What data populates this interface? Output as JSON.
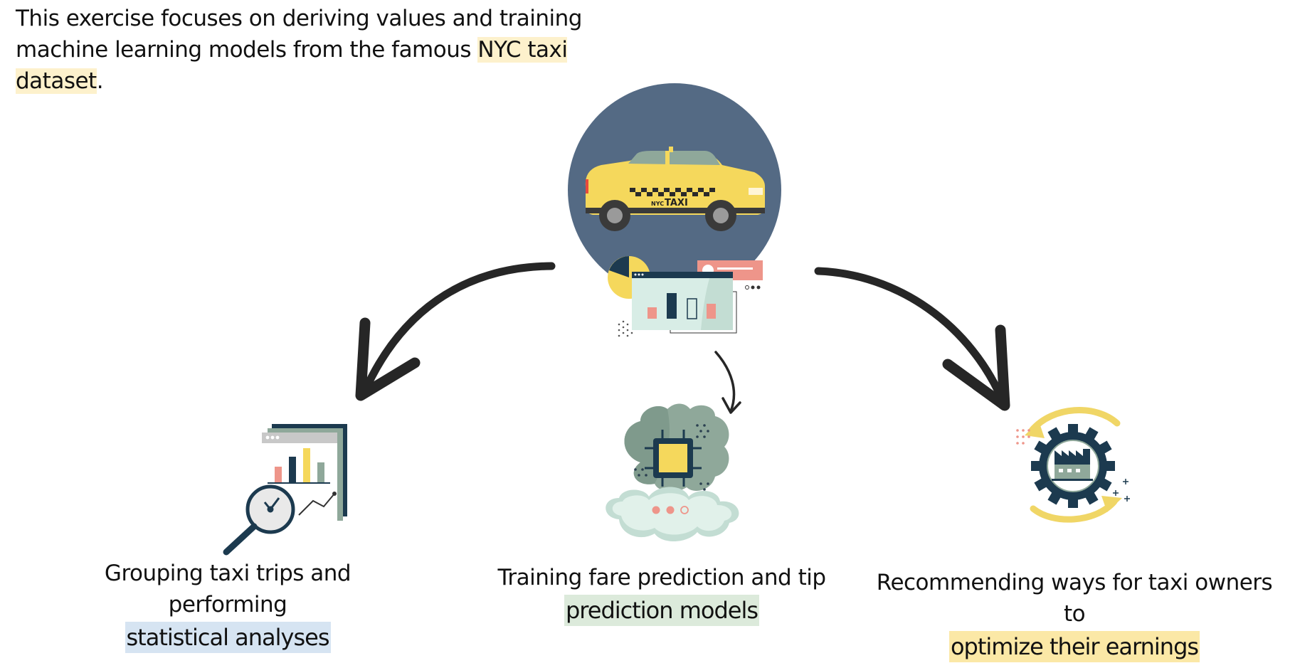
{
  "intro": {
    "text_before": "This exercise focuses on deriving values and training machine learning models from the famous ",
    "highlight": "NYC taxi dataset",
    "text_after": "."
  },
  "taxi": {
    "badge_small": "NYC",
    "badge_large": "TAXI"
  },
  "captions": {
    "left": {
      "text": "Grouping taxi trips and performing",
      "highlight": "statistical analyses"
    },
    "center": {
      "text": "Training fare prediction and tip",
      "highlight": "prediction models"
    },
    "right": {
      "text": "Recommending ways for taxi owners to",
      "highlight": "optimize their earnings"
    }
  },
  "icons": {
    "hub": "taxi-dashboard-illustration",
    "left": "magnifier-bar-chart-icon",
    "center": "brain-chip-cloud-icon",
    "right": "factory-gear-cycle-icon"
  },
  "colors": {
    "circle": "#546a84",
    "taxi_yellow": "#f5d85c",
    "dark_teal": "#1c3a4f",
    "pink": "#ee958a",
    "mint": "#d8ede6",
    "sage": "#8fa89a",
    "highlight_yellow": "#fdf1cc",
    "highlight_blue": "#d6e4f2",
    "highlight_green": "#dceadb",
    "highlight_gold": "#fbe8a6"
  }
}
